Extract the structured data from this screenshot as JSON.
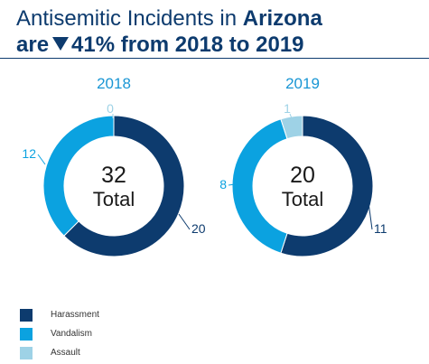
{
  "title": {
    "line1_prefix": "Antisemitic Incidents in ",
    "line1_bold": "Arizona",
    "line2_prefix": "are",
    "line2_rest": "41% from 2018 to 2019"
  },
  "total_label": "Total",
  "colors": {
    "Harassment": "#0d3b6e",
    "Vandalism": "#0ba2e0",
    "Assault": "#9ed2e6",
    "year_label": "#1a96d4",
    "center_text": "#1a1a1a"
  },
  "chart_data": [
    {
      "type": "pie",
      "subtitle": "2018",
      "total": 32,
      "categories": [
        "Harassment",
        "Vandalism",
        "Assault"
      ],
      "values": [
        20,
        12,
        0
      ],
      "legend": "bottom-left"
    },
    {
      "type": "pie",
      "subtitle": "2019",
      "total": 20,
      "categories": [
        "Harassment",
        "Vandalism",
        "Assault"
      ],
      "values": [
        11,
        8,
        1
      ],
      "legend": "bottom-left"
    }
  ],
  "legend": [
    {
      "label": "Harassment"
    },
    {
      "label": "Vandalism"
    },
    {
      "label": "Assault"
    }
  ]
}
